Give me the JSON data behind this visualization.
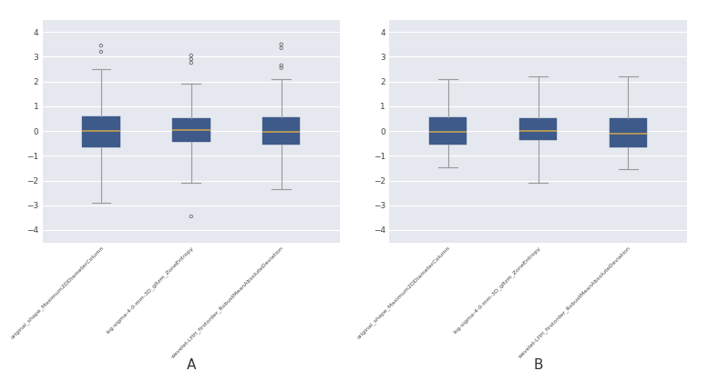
{
  "panel_A_label": "A",
  "panel_B_label": "B",
  "x_labels": [
    "original_shape_Maximum2DDiameterColumn",
    "log-sigma-4-0-mm-3D_gltzm_ZoneEntropy",
    "wavelet-LHH_firstorder_RobustMeanAbsoluteDeviation"
  ],
  "bg_color": "#e5e8ef",
  "fig_bg_color": "#f0f0f0",
  "box_color": "#3d5a8a",
  "median_color": "#c8a050",
  "whisker_color": "#999999",
  "cap_color": "#999999",
  "outlier_color": "#666666",
  "grid_color": "#ffffff",
  "ylim": [
    -4.5,
    4.5
  ],
  "yticks": [
    -4,
    -3,
    -2,
    -1,
    0,
    1,
    2,
    3,
    4
  ],
  "panel_A": {
    "boxes": [
      {
        "q1": -0.65,
        "median": 0.02,
        "q3": 0.6,
        "whislo": -2.9,
        "whishi": 2.5,
        "fliers_high": [
          3.2,
          3.45
        ],
        "fliers_low": []
      },
      {
        "q1": -0.45,
        "median": 0.05,
        "q3": 0.5,
        "whislo": -2.1,
        "whishi": 1.9,
        "fliers_high": [
          2.75,
          2.9,
          3.05
        ],
        "fliers_low": [
          -3.45
        ]
      },
      {
        "q1": -0.55,
        "median": -0.05,
        "q3": 0.55,
        "whislo": -2.35,
        "whishi": 2.1,
        "fliers_high": [
          3.35,
          3.5,
          2.55,
          2.65
        ],
        "fliers_low": []
      }
    ]
  },
  "panel_B": {
    "boxes": [
      {
        "q1": -0.55,
        "median": -0.02,
        "q3": 0.55,
        "whislo": -1.45,
        "whishi": 2.1,
        "fliers_high": [],
        "fliers_low": []
      },
      {
        "q1": -0.35,
        "median": 0.02,
        "q3": 0.5,
        "whislo": -2.1,
        "whishi": 2.2,
        "fliers_high": [],
        "fliers_low": []
      },
      {
        "q1": -0.65,
        "median": -0.1,
        "q3": 0.5,
        "whislo": -1.55,
        "whishi": 2.2,
        "fliers_high": [],
        "fliers_low": []
      }
    ]
  }
}
